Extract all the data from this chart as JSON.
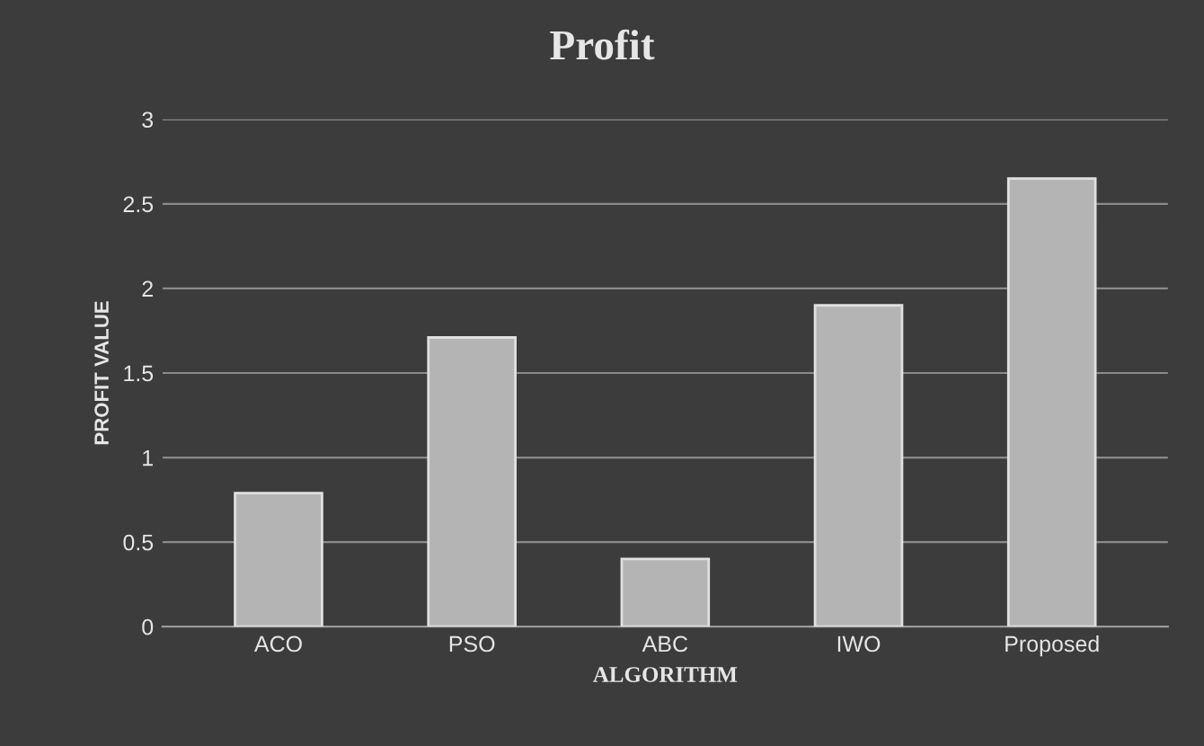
{
  "chart_data": {
    "type": "bar",
    "title": "Profit",
    "xlabel": "ALGORITHM",
    "ylabel": "PROFIT VALUE",
    "categories": [
      "ACO",
      "PSO",
      "ABC",
      "IWO",
      "Proposed"
    ],
    "values": [
      0.79,
      1.71,
      0.4,
      1.9,
      2.65
    ],
    "color": "#b4b4b4",
    "ylim": [
      0,
      3
    ],
    "yticks": [
      0,
      0.5,
      1,
      1.5,
      2,
      2.5,
      3
    ],
    "grid": "y",
    "legend": false
  }
}
